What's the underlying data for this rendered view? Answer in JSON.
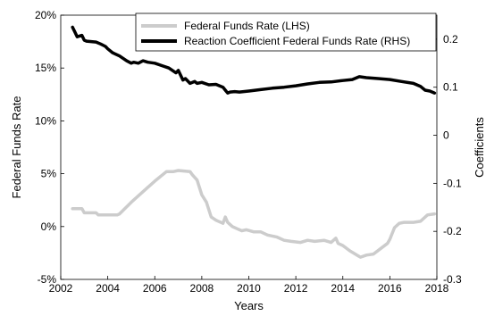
{
  "chart_data": {
    "type": "line",
    "xlabel": "Years",
    "ylabel_left": "Federal Funds Rate",
    "ylabel_right": "Coefficients",
    "x_range": [
      2002,
      2018
    ],
    "ylim_left": [
      -5,
      20
    ],
    "ylim_right": [
      -0.3,
      0.25
    ],
    "x_ticks": [
      2002,
      2004,
      2006,
      2008,
      2010,
      2012,
      2014,
      2016,
      2018
    ],
    "x_tick_labels": [
      "2002",
      "2004",
      "2006",
      "2008",
      "2010",
      "2012",
      "2014",
      "2016",
      "2018"
    ],
    "y_left_ticks": [
      -5,
      0,
      5,
      10,
      15,
      20
    ],
    "y_left_tick_labels": [
      "-5%",
      "0%",
      "5%",
      "10%",
      "15%",
      "20%"
    ],
    "y_right_ticks": [
      -0.3,
      -0.2,
      -0.1,
      0,
      0.1,
      0.2
    ],
    "y_right_tick_labels": [
      "-0.3",
      "-0.2",
      "-0.1",
      "0",
      "0.1",
      "0.2"
    ],
    "grid": false,
    "legend_position": "top-right",
    "series": [
      {
        "name": "Federal Funds Rate (LHS)",
        "axis": "left",
        "color": "#cccccc",
        "x": [
          2002.5,
          2002.9,
          2003.0,
          2003.5,
          2003.6,
          2004.4,
          2004.5,
          2005.0,
          2005.5,
          2006.0,
          2006.5,
          2006.8,
          2007.0,
          2007.5,
          2007.6,
          2007.8,
          2008.0,
          2008.2,
          2008.4,
          2008.6,
          2008.9,
          2009.0,
          2009.1,
          2009.3,
          2009.5,
          2009.7,
          2009.9,
          2010.2,
          2010.5,
          2010.8,
          2011.2,
          2011.5,
          2011.8,
          2012.2,
          2012.5,
          2012.8,
          2013.2,
          2013.5,
          2013.7,
          2013.8,
          2014.0,
          2014.3,
          2014.6,
          2014.75,
          2015.0,
          2015.3,
          2015.6,
          2015.9,
          2016.0,
          2016.2,
          2016.4,
          2016.6,
          2017.0,
          2017.3,
          2017.6,
          2017.9
        ],
        "values": [
          1.7,
          1.7,
          1.3,
          1.3,
          1.1,
          1.1,
          1.2,
          2.3,
          3.3,
          4.3,
          5.2,
          5.2,
          5.3,
          5.2,
          4.9,
          4.4,
          3.0,
          2.3,
          0.9,
          0.6,
          0.3,
          0.9,
          0.4,
          0.0,
          -0.2,
          -0.4,
          -0.3,
          -0.5,
          -0.5,
          -0.8,
          -1.0,
          -1.3,
          -1.4,
          -1.5,
          -1.3,
          -1.4,
          -1.3,
          -1.5,
          -1.1,
          -1.6,
          -1.8,
          -2.3,
          -2.7,
          -2.9,
          -2.7,
          -2.6,
          -2.1,
          -1.6,
          -1.2,
          -0.1,
          0.3,
          0.4,
          0.4,
          0.5,
          1.1,
          1.2
        ]
      },
      {
        "name": "Reaction Coefficient Federal Funds Rate (RHS)",
        "axis": "right",
        "color": "#000000",
        "x": [
          2002.5,
          2002.6,
          2002.7,
          2002.9,
          2003.0,
          2003.1,
          2003.3,
          2003.5,
          2003.7,
          2003.9,
          2004.0,
          2004.2,
          2004.5,
          2004.8,
          2005.0,
          2005.1,
          2005.3,
          2005.5,
          2005.7,
          2006.0,
          2006.3,
          2006.6,
          2006.9,
          2007.0,
          2007.2,
          2007.3,
          2007.5,
          2007.7,
          2007.8,
          2008.0,
          2008.3,
          2008.6,
          2008.9,
          2009.0,
          2009.1,
          2009.2,
          2009.4,
          2009.6,
          2010.0,
          2010.5,
          2011.0,
          2011.5,
          2012.0,
          2012.5,
          2013.0,
          2013.5,
          2014.0,
          2014.4,
          2014.7,
          2015.0,
          2015.5,
          2016.0,
          2016.5,
          2017.0,
          2017.3,
          2017.5,
          2017.7,
          2017.9
        ],
        "values": [
          0.225,
          0.215,
          0.205,
          0.208,
          0.198,
          0.196,
          0.195,
          0.194,
          0.19,
          0.185,
          0.18,
          0.172,
          0.165,
          0.155,
          0.15,
          0.152,
          0.15,
          0.155,
          0.152,
          0.15,
          0.145,
          0.14,
          0.13,
          0.135,
          0.115,
          0.118,
          0.108,
          0.112,
          0.108,
          0.11,
          0.105,
          0.106,
          0.1,
          0.094,
          0.088,
          0.09,
          0.091,
          0.09,
          0.092,
          0.095,
          0.098,
          0.1,
          0.103,
          0.107,
          0.11,
          0.111,
          0.114,
          0.116,
          0.122,
          0.12,
          0.118,
          0.116,
          0.112,
          0.108,
          0.102,
          0.094,
          0.092,
          0.088
        ]
      }
    ]
  }
}
